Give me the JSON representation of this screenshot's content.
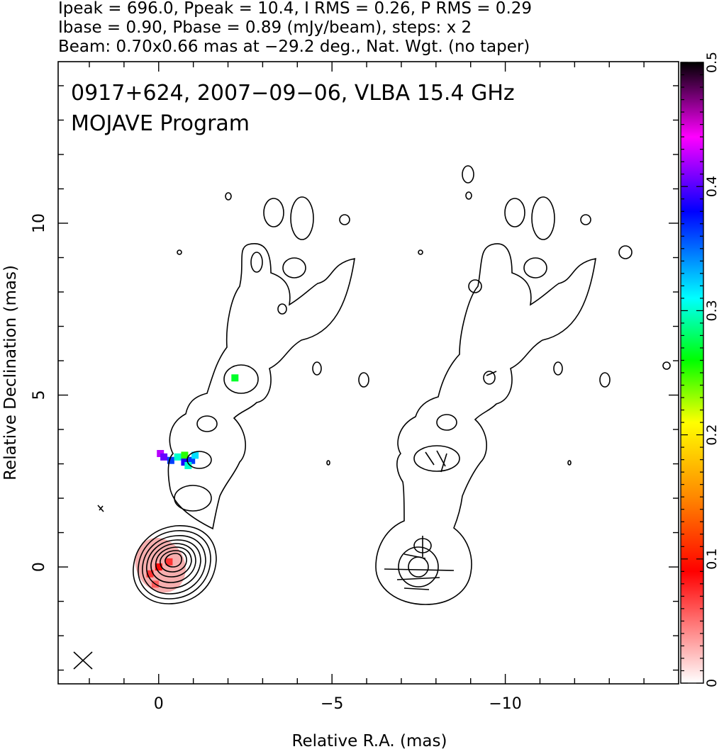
{
  "header": {
    "line1": "Ipeak = 696.0, Ppeak = 10.4, I RMS = 0.26, P RMS = 0.29",
    "line2": "Ibase = 0.90, Pbase = 0.89 (mJy/beam), steps: x 2",
    "line3": "Beam: 0.70x0.66 mas at −29.2 deg., Nat. Wgt. (no taper)"
  },
  "plot": {
    "source_line": "0917+624, 2007−09−06, VLBA 15.4 GHz",
    "program_line": "MOJAVE Program"
  },
  "chart_data": {
    "type": "heatmap",
    "title": "0917+624, 2007-09-06, VLBA 15.4 GHz",
    "xlabel": "Relative R.A. (mas)",
    "ylabel": "Relative Declination (mas)",
    "xlim": [
      2.9,
      -15.0
    ],
    "ylim": [
      -3.4,
      14.7
    ],
    "x_ticks": [
      0,
      -5,
      -10
    ],
    "x_tick_labels": [
      "0",
      "−5",
      "−10"
    ],
    "y_ticks": [
      0,
      5,
      10
    ],
    "y_tick_labels": [
      "0",
      "5",
      "10"
    ],
    "colorbar": {
      "range": [
        0,
        0.5
      ],
      "ticks": [
        0,
        0.1,
        0.2,
        0.3,
        0.4,
        0.5
      ],
      "tick_labels": [
        "0",
        "0.1",
        "0.2",
        "0.3",
        "0.4",
        "0.5"
      ],
      "colors": [
        "#ffffff",
        "#ff0000",
        "#ff8800",
        "#ffff00",
        "#00ff00",
        "#00ffff",
        "#0000ff",
        "#ff00ff",
        "#000000"
      ]
    },
    "polarization_pixels": [
      {
        "x": -2.2,
        "y": 5.5,
        "value": 0.26
      },
      {
        "x": -0.05,
        "y": 3.3,
        "value": 0.42
      },
      {
        "x": -0.15,
        "y": 3.2,
        "value": 0.4
      },
      {
        "x": -0.35,
        "y": 3.1,
        "value": 0.36
      },
      {
        "x": -0.55,
        "y": 3.2,
        "value": 0.3
      },
      {
        "x": -0.75,
        "y": 3.25,
        "value": 0.24
      },
      {
        "x": -0.95,
        "y": 3.1,
        "value": 0.36
      },
      {
        "x": -1.05,
        "y": 3.25,
        "value": 0.32
      },
      {
        "x": -0.75,
        "y": 3.05,
        "value": 0.38
      },
      {
        "x": -0.85,
        "y": 2.95,
        "value": 0.3
      },
      {
        "x": 0.0,
        "y": 0.0,
        "value": 0.06
      },
      {
        "x": -0.3,
        "y": 0.15,
        "value": 0.05
      },
      {
        "x": 0.25,
        "y": -0.2,
        "value": 0.05
      },
      {
        "x": 0.1,
        "y": -0.5,
        "value": 0.04
      }
    ]
  },
  "colors": {
    "background": "#ffffff",
    "axis": "#000000",
    "contour": "#000000",
    "core_fill": "#f4a0a0"
  }
}
